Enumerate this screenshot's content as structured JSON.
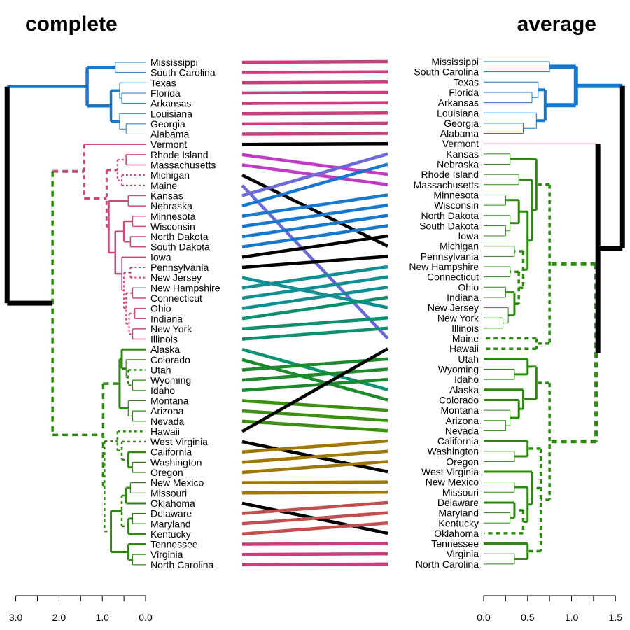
{
  "chart_data": {
    "type": "tanglegram",
    "left": {
      "title": "complete",
      "axis": {
        "ticks": [
          3.0,
          2.5,
          2.0,
          1.5,
          1.0,
          0.5,
          0.0
        ],
        "tick_labels": [
          "3.0",
          "",
          "2.0",
          "",
          "1.0",
          "",
          "0.0"
        ],
        "range": [
          3.0,
          0.0
        ]
      },
      "labels": [
        "Mississippi",
        "South Carolina",
        "Texas",
        "Florida",
        "Arkansas",
        "Louisiana",
        "Georgia",
        "Alabama",
        "Vermont",
        "Rhode Island",
        "Massachusetts",
        "Michigan",
        "Maine",
        "Kansas",
        "Nebraska",
        "Minnesota",
        "Wisconsin",
        "North Dakota",
        "South Dakota",
        "Iowa",
        "Pennsylvania",
        "New Jersey",
        "New Hampshire",
        "Connecticut",
        "Ohio",
        "Indiana",
        "New York",
        "Illinois",
        "Alaska",
        "Colorado",
        "Utah",
        "Wyoming",
        "Idaho",
        "Montana",
        "Arizona",
        "Nevada",
        "Hawaii",
        "West Virginia",
        "California",
        "Washington",
        "Oregon",
        "New Mexico",
        "Missouri",
        "Oklahoma",
        "Delaware",
        "Maryland",
        "Kentucky",
        "Tennessee",
        "Virginia",
        "North Carolina"
      ]
    },
    "right": {
      "title": "average",
      "axis": {
        "ticks": [
          0.0,
          0.25,
          0.5,
          0.75,
          1.0,
          1.25,
          1.5
        ],
        "tick_labels": [
          "0.0",
          "",
          "0.5",
          "",
          "1.0",
          "",
          "1.5"
        ],
        "range": [
          0.0,
          1.5
        ]
      },
      "labels": [
        "Mississippi",
        "South Carolina",
        "Texas",
        "Florida",
        "Arkansas",
        "Louisiana",
        "Georgia",
        "Alabama",
        "Vermont",
        "Kansas",
        "Nebraska",
        "Rhode Island",
        "Massachusetts",
        "Minnesota",
        "Wisconsin",
        "North Dakota",
        "South Dakota",
        "Iowa",
        "Michigan",
        "Pennsylvania",
        "New Hampshire",
        "Connecticut",
        "Ohio",
        "Indiana",
        "New Jersey",
        "New York",
        "Illinois",
        "Maine",
        "Hawaii",
        "Utah",
        "Wyoming",
        "Idaho",
        "Alaska",
        "Colorado",
        "Montana",
        "Arizona",
        "Nevada",
        "California",
        "Washington",
        "Oregon",
        "West Virginia",
        "New Mexico",
        "Missouri",
        "Delaware",
        "Maryland",
        "Kentucky",
        "Oklahoma",
        "Tennessee",
        "Virginia",
        "North Carolina"
      ]
    },
    "connector_colors": [
      "#cc3d7d",
      "#cc3d7d",
      "#cc3d7d",
      "#cc3d7d",
      "#cc3d7d",
      "#cc3d7d",
      "#cc3d7d",
      "#cc3d7d",
      "#000000",
      "#c03cc4",
      "#c03cc4",
      "#000000",
      "#6a6ad8",
      "#6a6ad8",
      "#1778cf",
      "#1778cf",
      "#1778cf",
      "#1778cf",
      "#1778cf",
      "#000000",
      "#000000",
      "#0f8f94",
      "#0f8f94",
      "#0f8f94",
      "#0f8f94",
      "#0b8f6d",
      "#0b8f6d",
      "#0b8f6d",
      "#0a9470",
      "#1c8a2c",
      "#1c8a2c",
      "#1c8a2c",
      "#1c8a2c",
      "#3c8f11",
      "#3c8f11",
      "#3c8f11",
      "#000000",
      "#000000",
      "#a07700",
      "#a07700",
      "#a07700",
      "#a07700",
      "#a07700",
      "#000000",
      "#c44d4d",
      "#c44d4d",
      "#c44d4d",
      "#cc3d7d",
      "#cc3d7d",
      "#cc3d7d"
    ],
    "cluster_colors": {
      "blue": "#1778cf",
      "pink": "#cc4a78",
      "green": "#2b8a0e",
      "black": "#000000"
    }
  }
}
